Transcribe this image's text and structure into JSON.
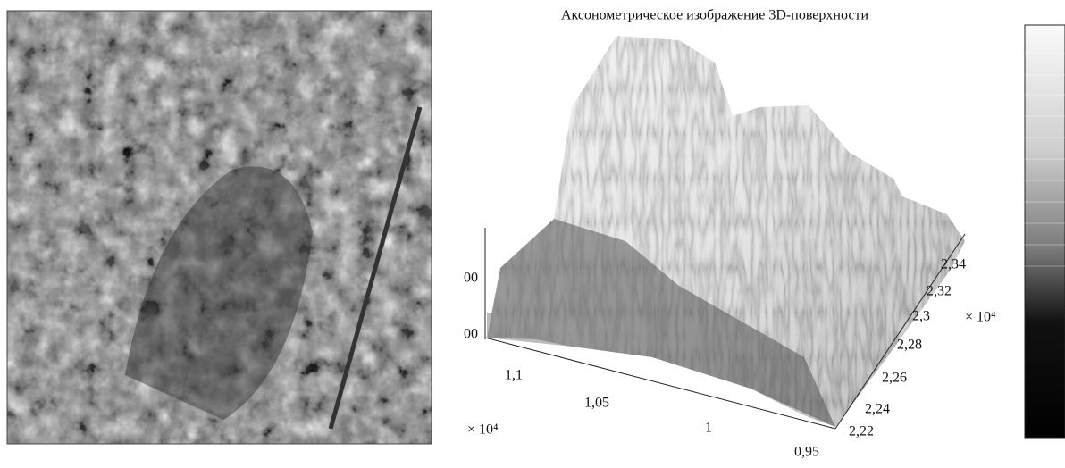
{
  "surface_plot": {
    "title": "Аксонометрическое изображение 3D-поверхности",
    "z_ticks": [
      "00",
      "00"
    ],
    "x_ticks": [
      "1,1",
      "1,05",
      "1",
      "0,95"
    ],
    "x_multiplier": "× 10⁴",
    "y_ticks": [
      "2,22",
      "2,24",
      "2,26",
      "2,28",
      "2,3",
      "2,32",
      "2,34"
    ],
    "y_multiplier": "× 10⁴"
  }
}
